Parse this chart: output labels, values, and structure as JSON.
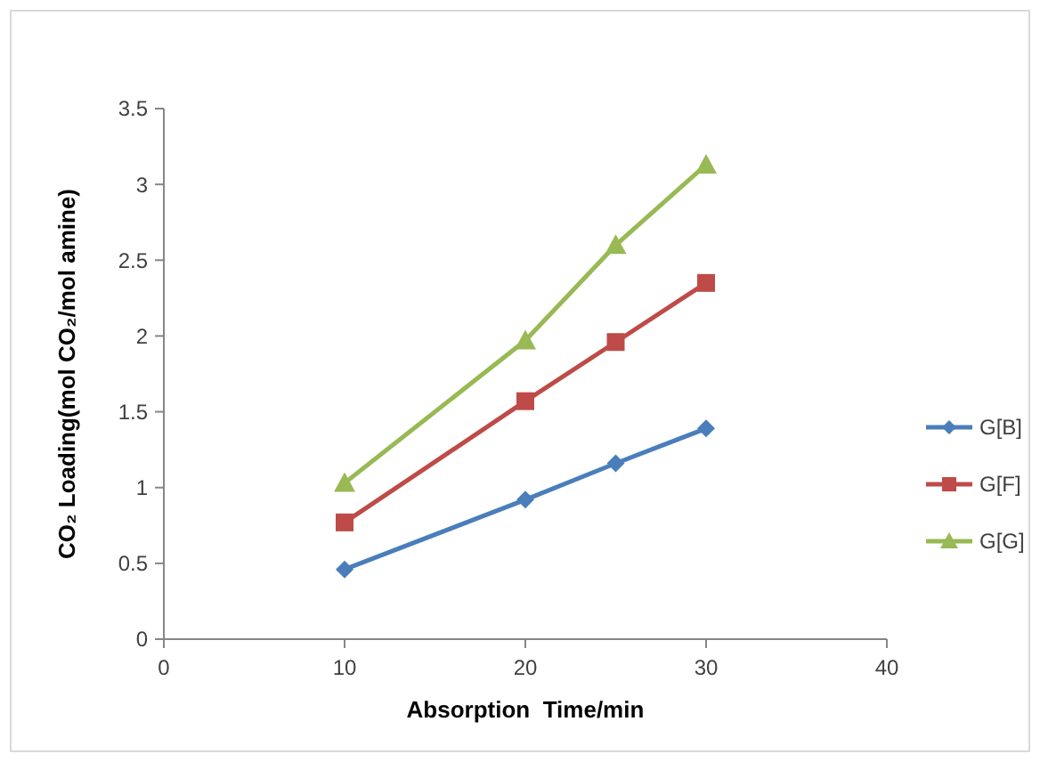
{
  "chart_data": {
    "type": "line",
    "xlabel": "Absorption  Time/min",
    "ylabel": "CO₂ Loading(mol CO₂/mol amine)",
    "x": [
      10,
      20,
      25,
      30
    ],
    "series": [
      {
        "name": "G[B]",
        "color": "#4a7ebb",
        "marker": "diamond",
        "values": [
          0.46,
          0.92,
          1.16,
          1.39
        ]
      },
      {
        "name": "G[F]",
        "color": "#be4b48",
        "marker": "square",
        "values": [
          0.77,
          1.57,
          1.96,
          2.35
        ]
      },
      {
        "name": "G[G]",
        "color": "#98b954",
        "marker": "triangle",
        "values": [
          1.03,
          1.97,
          2.6,
          3.13
        ]
      }
    ],
    "xlim": [
      0,
      40
    ],
    "xticks": [
      0,
      10,
      20,
      30,
      40
    ],
    "ylim": [
      0,
      3.5
    ],
    "yticks": [
      0,
      0.5,
      1,
      1.5,
      2,
      2.5,
      3,
      3.5
    ],
    "grid": false,
    "legend": "right",
    "line_style": "solid"
  }
}
